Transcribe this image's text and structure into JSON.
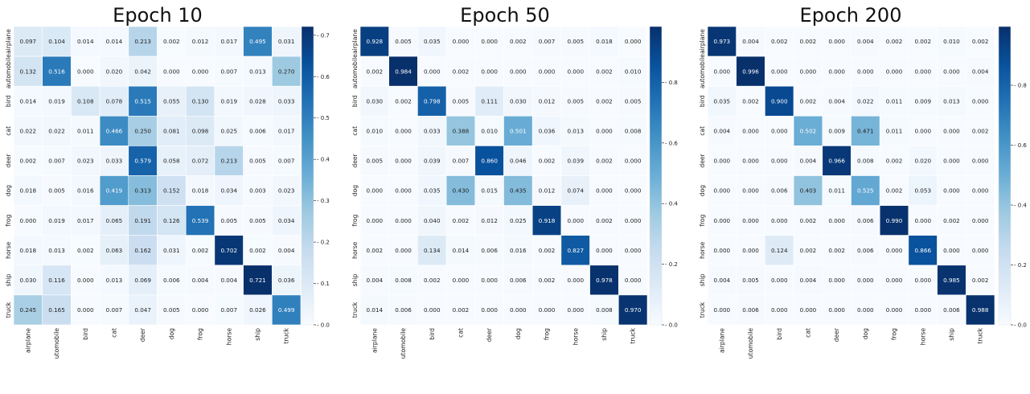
{
  "chart_data": [
    {
      "type": "heatmap",
      "title": "Epoch 10",
      "x_categories": [
        "airplane",
        "utomobile",
        "bird",
        "cat",
        "deer",
        "dog",
        "frog",
        "horse",
        "ship",
        "truck"
      ],
      "y_categories": [
        "airplane",
        "automobile",
        "bird",
        "cat",
        "deer",
        "dog",
        "frog",
        "horse",
        "ship",
        "truck"
      ],
      "values": [
        [
          0.097,
          0.104,
          0.014,
          0.014,
          0.213,
          0.002,
          0.012,
          0.017,
          0.495,
          0.031
        ],
        [
          0.132,
          0.516,
          0.0,
          0.02,
          0.042,
          0.0,
          0.0,
          0.007,
          0.013,
          0.27
        ],
        [
          0.014,
          0.019,
          0.108,
          0.078,
          0.515,
          0.055,
          0.13,
          0.019,
          0.028,
          0.033
        ],
        [
          0.022,
          0.022,
          0.011,
          0.466,
          0.25,
          0.081,
          0.098,
          0.025,
          0.006,
          0.017
        ],
        [
          0.002,
          0.007,
          0.023,
          0.033,
          0.579,
          0.058,
          0.072,
          0.213,
          0.005,
          0.007
        ],
        [
          0.018,
          0.005,
          0.016,
          0.419,
          0.313,
          0.152,
          0.018,
          0.034,
          0.003,
          0.023
        ],
        [
          0.0,
          0.019,
          0.017,
          0.065,
          0.191,
          0.126,
          0.539,
          0.005,
          0.005,
          0.034
        ],
        [
          0.018,
          0.013,
          0.002,
          0.063,
          0.162,
          0.031,
          0.002,
          0.702,
          0.002,
          0.004
        ],
        [
          0.03,
          0.116,
          0.0,
          0.013,
          0.069,
          0.006,
          0.004,
          0.004,
          0.721,
          0.036
        ],
        [
          0.245,
          0.165,
          0.0,
          0.007,
          0.047,
          0.005,
          0.0,
          0.007,
          0.026,
          0.499
        ]
      ],
      "vmin": 0.0,
      "vmax": 0.721,
      "colorbar_ticks": [
        "0.0",
        "0.1",
        "0.2",
        "0.3",
        "0.4",
        "0.5",
        "0.6",
        "0.7"
      ],
      "colormap": "Blues"
    },
    {
      "type": "heatmap",
      "title": "Epoch 50",
      "x_categories": [
        "airplane",
        "utomobile",
        "bird",
        "cat",
        "deer",
        "dog",
        "frog",
        "horse",
        "ship",
        "truck"
      ],
      "y_categories": [
        "airplane",
        "automobile",
        "bird",
        "cat",
        "deer",
        "dog",
        "frog",
        "horse",
        "ship",
        "truck"
      ],
      "values": [
        [
          0.928,
          0.005,
          0.035,
          0.0,
          0.0,
          0.002,
          0.007,
          0.005,
          0.018,
          0.0
        ],
        [
          0.002,
          0.984,
          0.0,
          0.002,
          0.0,
          0.0,
          0.0,
          0.0,
          0.002,
          0.01
        ],
        [
          0.03,
          0.002,
          0.798,
          0.005,
          0.111,
          0.03,
          0.012,
          0.005,
          0.002,
          0.005
        ],
        [
          0.01,
          0.0,
          0.033,
          0.388,
          0.01,
          0.501,
          0.036,
          0.013,
          0.0,
          0.008
        ],
        [
          0.005,
          0.0,
          0.039,
          0.007,
          0.86,
          0.046,
          0.002,
          0.039,
          0.002,
          0.0
        ],
        [
          0.0,
          0.0,
          0.035,
          0.43,
          0.015,
          0.435,
          0.012,
          0.074,
          0.0,
          0.0
        ],
        [
          0.0,
          0.0,
          0.04,
          0.002,
          0.012,
          0.025,
          0.918,
          0.0,
          0.002,
          0.0
        ],
        [
          0.002,
          0.0,
          0.134,
          0.014,
          0.006,
          0.016,
          0.002,
          0.827,
          0.0,
          0.0
        ],
        [
          0.004,
          0.008,
          0.002,
          0.0,
          0.0,
          0.006,
          0.002,
          0.0,
          0.978,
          0.0
        ],
        [
          0.014,
          0.006,
          0.0,
          0.002,
          0.0,
          0.0,
          0.0,
          0.0,
          0.008,
          0.97
        ]
      ],
      "vmin": 0.0,
      "vmax": 0.984,
      "colorbar_ticks": [
        "0.0",
        "0.2",
        "0.4",
        "0.6",
        "0.8"
      ],
      "colormap": "Blues"
    },
    {
      "type": "heatmap",
      "title": "Epoch 200",
      "x_categories": [
        "airplane",
        "utomobile",
        "bird",
        "cat",
        "deer",
        "dog",
        "frog",
        "horse",
        "ship",
        "truck"
      ],
      "y_categories": [
        "airplane",
        "automobile",
        "bird",
        "cat",
        "deer",
        "dog",
        "frog",
        "horse",
        "ship",
        "truck"
      ],
      "values": [
        [
          0.973,
          0.004,
          0.002,
          0.002,
          0.0,
          0.004,
          0.002,
          0.002,
          0.01,
          0.002
        ],
        [
          0.0,
          0.996,
          0.0,
          0.0,
          0.0,
          0.0,
          0.0,
          0.0,
          0.0,
          0.004
        ],
        [
          0.035,
          0.002,
          0.9,
          0.002,
          0.004,
          0.022,
          0.011,
          0.009,
          0.013,
          0.0
        ],
        [
          0.004,
          0.0,
          0.0,
          0.502,
          0.009,
          0.471,
          0.011,
          0.0,
          0.0,
          0.002
        ],
        [
          0.0,
          0.0,
          0.0,
          0.004,
          0.966,
          0.008,
          0.002,
          0.02,
          0.0,
          0.0
        ],
        [
          0.0,
          0.0,
          0.006,
          0.403,
          0.011,
          0.525,
          0.002,
          0.053,
          0.0,
          0.0
        ],
        [
          0.0,
          0.0,
          0.0,
          0.002,
          0.0,
          0.006,
          0.99,
          0.0,
          0.002,
          0.0
        ],
        [
          0.0,
          0.0,
          0.124,
          0.002,
          0.002,
          0.006,
          0.0,
          0.866,
          0.0,
          0.0
        ],
        [
          0.004,
          0.005,
          0.0,
          0.004,
          0.0,
          0.0,
          0.0,
          0.0,
          0.985,
          0.002
        ],
        [
          0.0,
          0.006,
          0.0,
          0.0,
          0.0,
          0.0,
          0.0,
          0.0,
          0.006,
          0.988
        ]
      ],
      "vmin": 0.0,
      "vmax": 0.996,
      "colorbar_ticks": [
        "0.0",
        "0.2",
        "0.4",
        "0.6",
        "0.8"
      ],
      "colormap": "Blues"
    }
  ]
}
